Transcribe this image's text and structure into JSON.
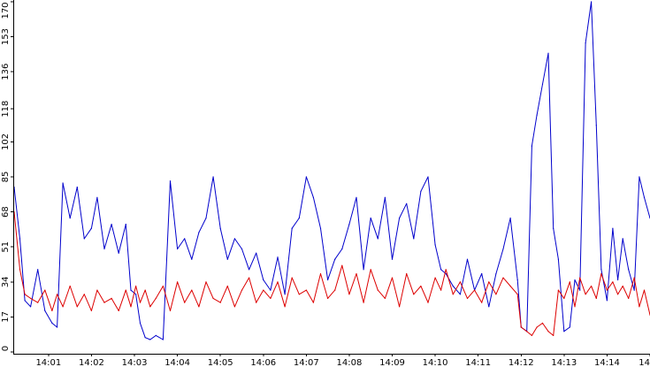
{
  "chart_data": {
    "type": "line",
    "title": "",
    "xlabel": "",
    "ylabel": "",
    "ylim": [
      0,
      170
    ],
    "yticks": [
      0,
      17,
      34,
      51,
      68,
      85,
      102,
      118,
      136,
      153,
      170
    ],
    "xlim": [
      "14:00:12",
      "14:15:00"
    ],
    "xticks": [
      "14:01",
      "14:02",
      "14:03",
      "14:04",
      "14:05",
      "14:06",
      "14:07",
      "14:08",
      "14:09",
      "14:10",
      "14:11",
      "14:12",
      "14:13",
      "14:14",
      "14"
    ],
    "grid": false,
    "legend": "none",
    "series": [
      {
        "color": "#0000cc",
        "x": [
          "14:00:12",
          "14:00:20",
          "14:00:27",
          "14:00:35",
          "14:00:45",
          "14:00:55",
          "14:01:05",
          "14:01:12",
          "14:01:20",
          "14:01:30",
          "14:01:40",
          "14:01:50",
          "14:02:00",
          "14:02:08",
          "14:02:18",
          "14:02:28",
          "14:02:38",
          "14:02:48",
          "14:02:55",
          "14:03:02",
          "14:03:08",
          "14:03:15",
          "14:03:22",
          "14:03:30",
          "14:03:40",
          "14:03:50",
          "14:04:00",
          "14:04:10",
          "14:04:20",
          "14:04:30",
          "14:04:40",
          "14:04:50",
          "14:05:00",
          "14:05:10",
          "14:05:20",
          "14:05:30",
          "14:05:40",
          "14:05:50",
          "14:06:00",
          "14:06:10",
          "14:06:20",
          "14:06:30",
          "14:06:40",
          "14:06:50",
          "14:07:00",
          "14:07:10",
          "14:07:20",
          "14:07:30",
          "14:07:40",
          "14:07:50",
          "14:08:00",
          "14:08:10",
          "14:08:20",
          "14:08:30",
          "14:08:40",
          "14:08:50",
          "14:09:00",
          "14:09:10",
          "14:09:20",
          "14:09:30",
          "14:09:40",
          "14:09:50",
          "14:10:00",
          "14:10:08",
          "14:10:15",
          "14:10:25",
          "14:10:35",
          "14:10:45",
          "14:10:55",
          "14:11:05",
          "14:11:15",
          "14:11:25",
          "14:11:35",
          "14:11:45",
          "14:11:55",
          "14:12:00",
          "14:12:08",
          "14:12:15",
          "14:12:22",
          "14:12:30",
          "14:12:38",
          "14:12:45",
          "14:12:52",
          "14:13:00",
          "14:13:08",
          "14:13:15",
          "14:13:22",
          "14:13:30",
          "14:13:38",
          "14:13:45",
          "14:13:52",
          "14:14:00",
          "14:14:08",
          "14:14:15",
          "14:14:22",
          "14:14:30",
          "14:14:38",
          "14:14:45",
          "14:14:52",
          "14:15:00"
        ],
        "values": [
          80,
          55,
          25,
          22,
          40,
          20,
          14,
          12,
          82,
          65,
          80,
          55,
          60,
          75,
          50,
          62,
          48,
          62,
          30,
          28,
          14,
          7,
          6,
          8,
          6,
          83,
          50,
          55,
          45,
          58,
          65,
          85,
          60,
          45,
          55,
          50,
          40,
          48,
          35,
          30,
          46,
          28,
          60,
          65,
          85,
          75,
          60,
          35,
          45,
          50,
          62,
          75,
          40,
          65,
          55,
          75,
          45,
          65,
          72,
          55,
          78,
          85,
          52,
          40,
          38,
          32,
          28,
          45,
          30,
          38,
          22,
          38,
          50,
          65,
          35,
          12,
          10,
          100,
          115,
          130,
          145,
          60,
          45,
          10,
          12,
          35,
          30,
          150,
          170,
          110,
          40,
          25,
          60,
          35,
          55,
          40,
          30,
          85,
          75,
          65
        ]
      },
      {
        "color": "#dd0000",
        "x": [
          "14:00:12",
          "14:00:20",
          "14:00:27",
          "14:00:35",
          "14:00:45",
          "14:00:55",
          "14:01:05",
          "14:01:12",
          "14:01:20",
          "14:01:30",
          "14:01:40",
          "14:01:50",
          "14:02:00",
          "14:02:08",
          "14:02:18",
          "14:02:28",
          "14:02:38",
          "14:02:48",
          "14:02:55",
          "14:03:02",
          "14:03:08",
          "14:03:15",
          "14:03:22",
          "14:03:30",
          "14:03:40",
          "14:03:50",
          "14:04:00",
          "14:04:10",
          "14:04:20",
          "14:04:30",
          "14:04:40",
          "14:04:50",
          "14:05:00",
          "14:05:10",
          "14:05:20",
          "14:05:30",
          "14:05:40",
          "14:05:50",
          "14:06:00",
          "14:06:10",
          "14:06:20",
          "14:06:30",
          "14:06:40",
          "14:06:50",
          "14:07:00",
          "14:07:10",
          "14:07:20",
          "14:07:30",
          "14:07:40",
          "14:07:50",
          "14:08:00",
          "14:08:10",
          "14:08:20",
          "14:08:30",
          "14:08:40",
          "14:08:50",
          "14:09:00",
          "14:09:10",
          "14:09:20",
          "14:09:30",
          "14:09:40",
          "14:09:50",
          "14:10:00",
          "14:10:08",
          "14:10:15",
          "14:10:25",
          "14:10:35",
          "14:10:45",
          "14:10:55",
          "14:11:05",
          "14:11:15",
          "14:11:25",
          "14:11:35",
          "14:11:45",
          "14:11:55",
          "14:12:00",
          "14:12:08",
          "14:12:15",
          "14:12:22",
          "14:12:30",
          "14:12:38",
          "14:12:45",
          "14:12:52",
          "14:13:00",
          "14:13:08",
          "14:13:15",
          "14:13:22",
          "14:13:30",
          "14:13:38",
          "14:13:45",
          "14:13:52",
          "14:14:00",
          "14:14:08",
          "14:14:15",
          "14:14:22",
          "14:14:30",
          "14:14:38",
          "14:14:45",
          "14:14:52",
          "14:15:00"
        ],
        "values": [
          68,
          40,
          28,
          26,
          24,
          30,
          20,
          28,
          22,
          32,
          22,
          28,
          20,
          30,
          24,
          26,
          20,
          30,
          22,
          32,
          24,
          30,
          22,
          26,
          32,
          20,
          34,
          24,
          30,
          22,
          34,
          26,
          24,
          32,
          22,
          30,
          36,
          24,
          30,
          26,
          34,
          22,
          36,
          28,
          30,
          24,
          38,
          26,
          30,
          42,
          28,
          38,
          24,
          40,
          30,
          26,
          36,
          22,
          38,
          28,
          32,
          24,
          36,
          30,
          40,
          28,
          34,
          26,
          30,
          24,
          34,
          28,
          36,
          32,
          28,
          12,
          10,
          8,
          12,
          14,
          10,
          8,
          30,
          26,
          34,
          22,
          36,
          28,
          32,
          26,
          38,
          30,
          34,
          28,
          32,
          26,
          36,
          22,
          30,
          18
        ]
      }
    ]
  }
}
